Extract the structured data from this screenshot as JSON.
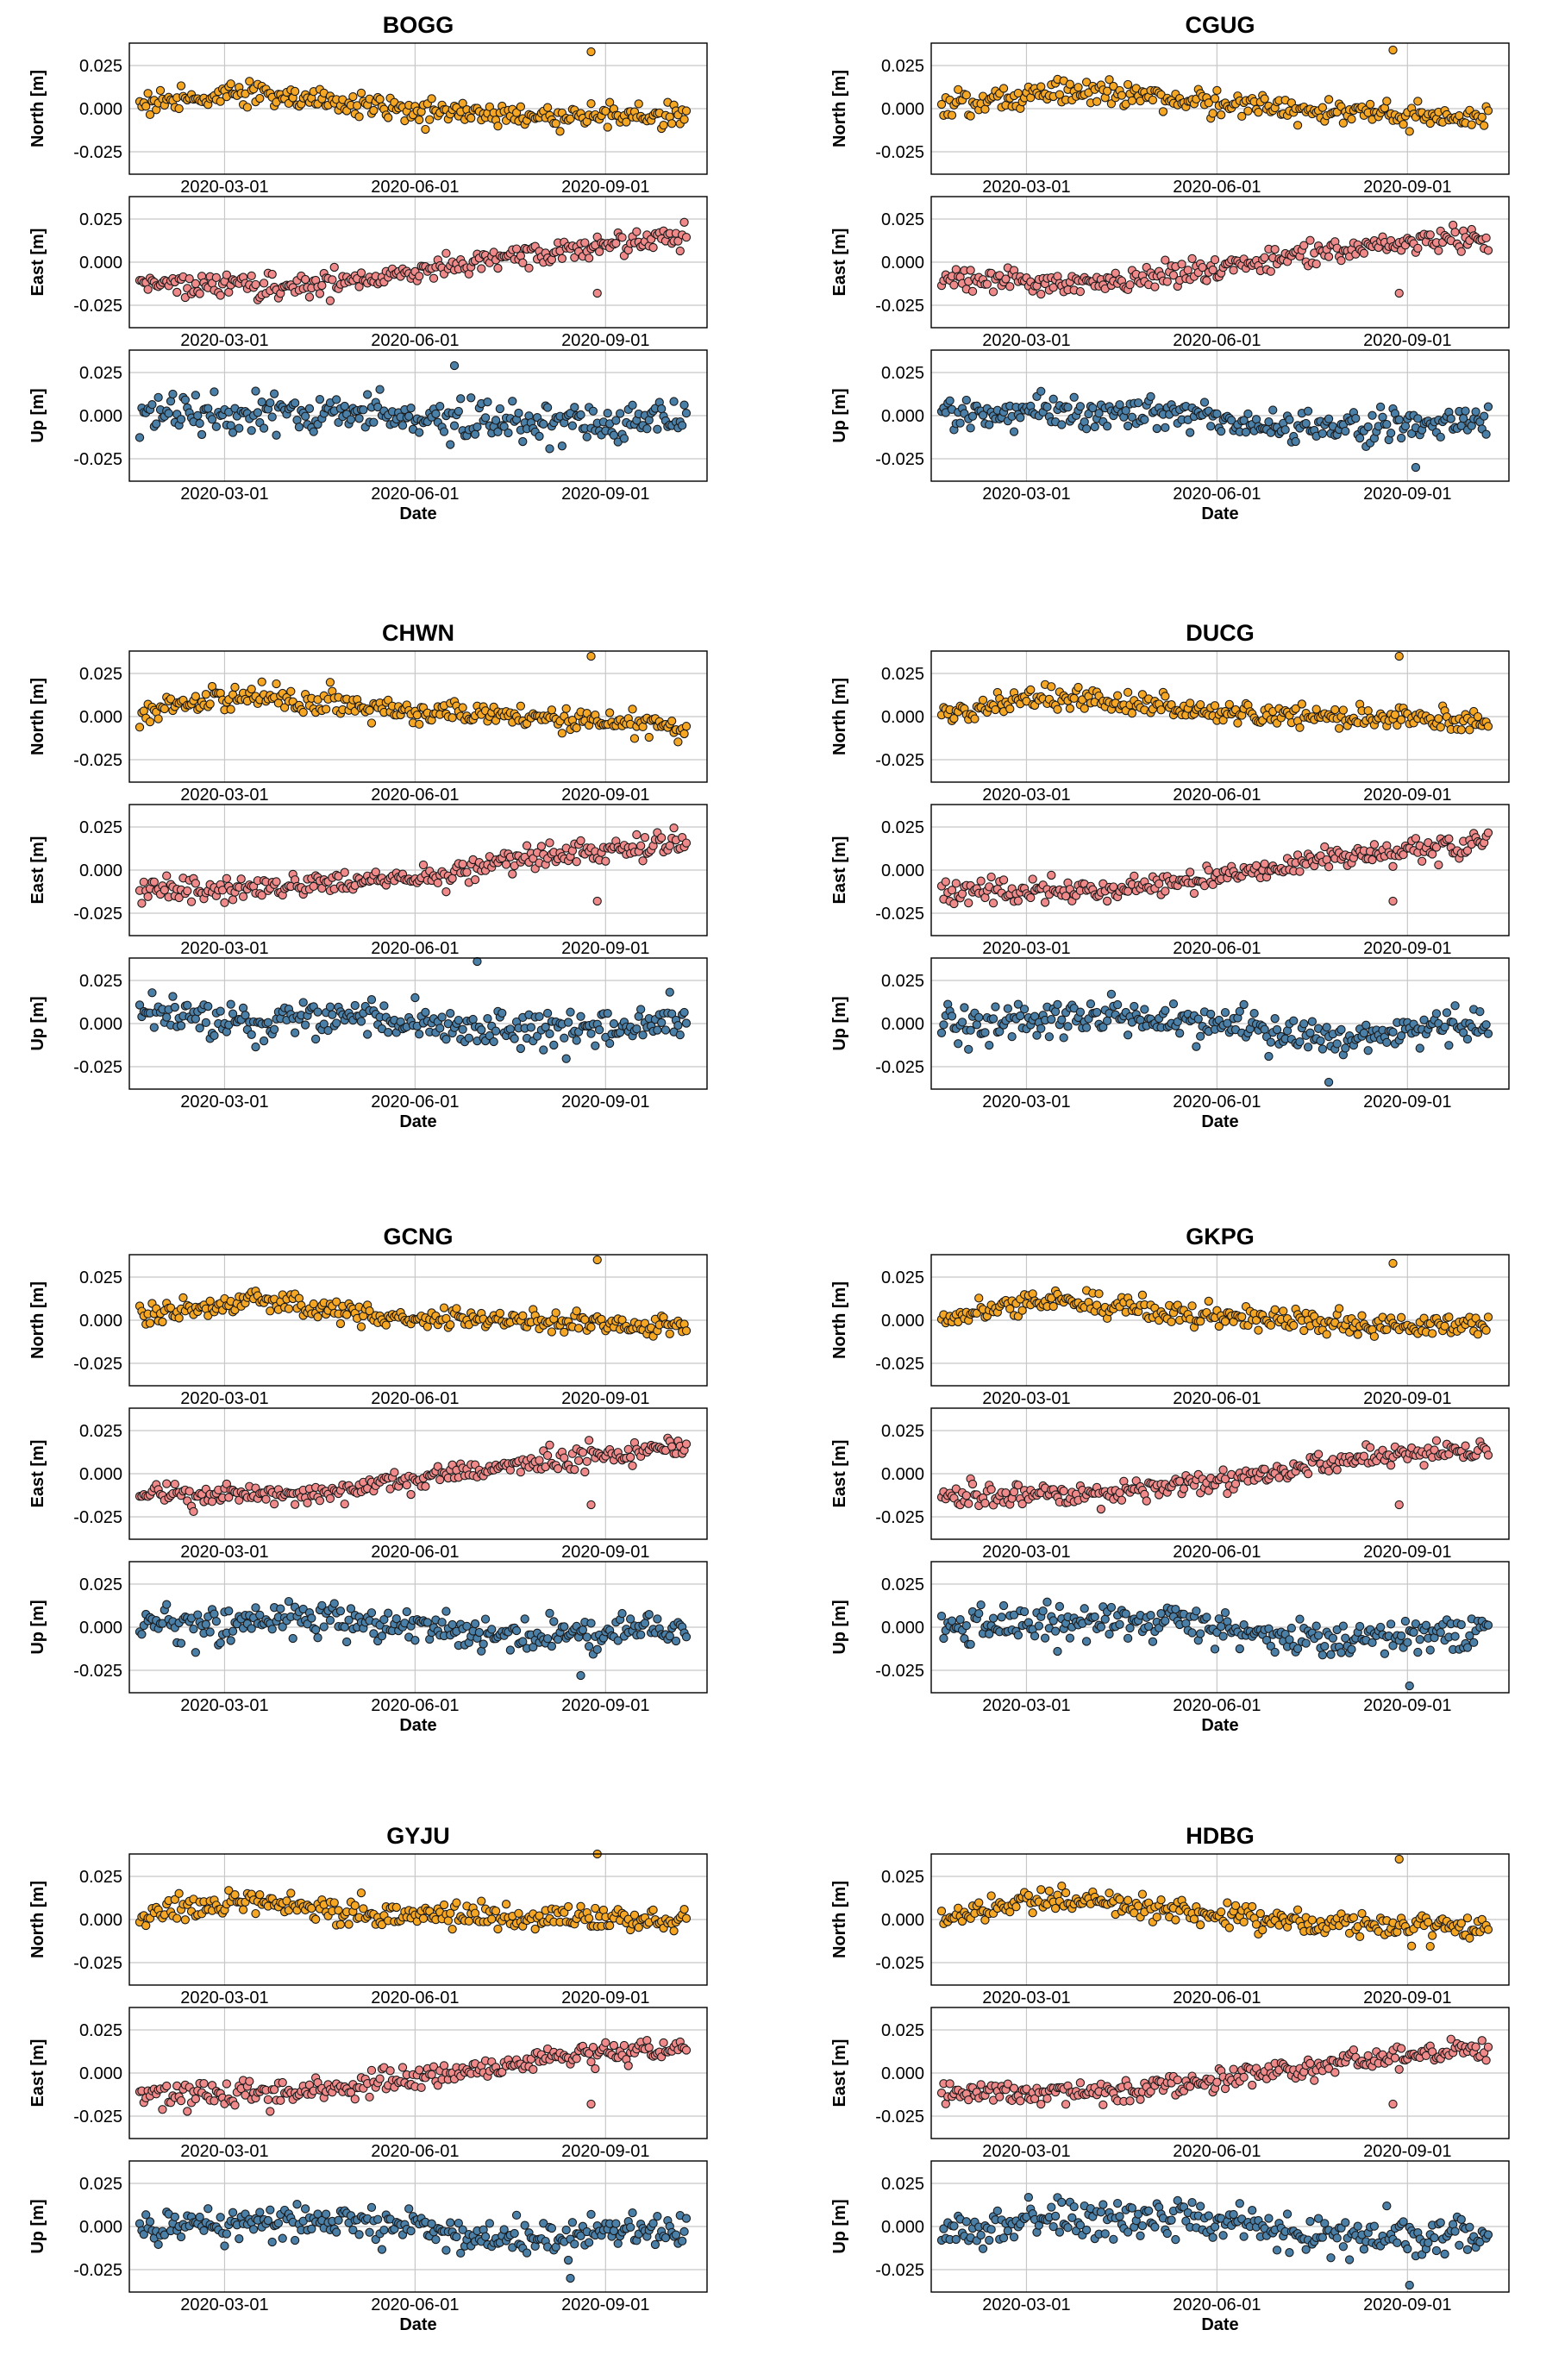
{
  "figure": {
    "panel_titles": [
      "BOGG",
      "CGUG",
      "CHWN",
      "DUCG",
      "GCNG",
      "GKPG",
      "GYJU",
      "HDBG"
    ]
  },
  "chart_data": {
    "type": "scatter",
    "shared": {
      "x_tick_labels": [
        "2020-03-01",
        "2020-06-01",
        "2020-09-01"
      ],
      "x_ticks": [
        "2020-03-01",
        "2020-06-01",
        "2020-09-01"
      ],
      "xlim": [
        "2020-01-15",
        "2020-10-20"
      ],
      "xlabel": "Date",
      "y_tick_labels": [
        "0.025",
        "0.000",
        "-0.025"
      ],
      "ylim": [
        -0.038,
        0.038
      ],
      "grid": true,
      "components": [
        {
          "ylabel": "North [m]",
          "color": "#f5a623"
        },
        {
          "ylabel": "East [m]",
          "color": "#f08a8a"
        },
        {
          "ylabel": "Up [m]",
          "color": "#4a7fa8"
        }
      ]
    },
    "stations": [
      {
        "name": "BOGG",
        "north": {
          "trend": [
            [
              0,
              0.003
            ],
            [
              0.2,
              0.01
            ],
            [
              0.45,
              0.0
            ],
            [
              0.7,
              -0.004
            ],
            [
              1,
              -0.004
            ]
          ],
          "spread": 0.006,
          "outlier": [
            "2020-08-25",
            0.033
          ]
        },
        "east": {
          "trend": [
            [
              0,
              -0.012
            ],
            [
              0.3,
              -0.014
            ],
            [
              0.5,
              -0.006
            ],
            [
              0.75,
              0.005
            ],
            [
              1,
              0.016
            ]
          ],
          "spread": 0.006,
          "outlier": [
            "2020-08-28",
            -0.018
          ]
        },
        "up": {
          "trend": [
            [
              0,
              0.0
            ],
            [
              0.4,
              0.002
            ],
            [
              0.7,
              -0.006
            ],
            [
              1,
              0.0
            ]
          ],
          "spread": 0.01,
          "outlier": [
            "2020-06-20",
            0.029
          ]
        }
      },
      {
        "name": "CGUG",
        "north": {
          "trend": [
            [
              0,
              0.002
            ],
            [
              0.2,
              0.01
            ],
            [
              0.45,
              0.005
            ],
            [
              0.7,
              -0.002
            ],
            [
              1,
              -0.004
            ]
          ],
          "spread": 0.006,
          "outlier": [
            "2020-08-25",
            0.034
          ]
        },
        "east": {
          "trend": [
            [
              0,
              -0.01
            ],
            [
              0.3,
              -0.012
            ],
            [
              0.5,
              -0.004
            ],
            [
              0.75,
              0.008
            ],
            [
              1,
              0.016
            ]
          ],
          "spread": 0.006,
          "outlier": [
            "2020-08-28",
            -0.018
          ]
        },
        "up": {
          "trend": [
            [
              0,
              0.0
            ],
            [
              0.4,
              0.002
            ],
            [
              0.7,
              -0.008
            ],
            [
              1,
              -0.002
            ]
          ],
          "spread": 0.009,
          "outlier": [
            "2020-09-05",
            -0.03
          ]
        }
      },
      {
        "name": "CHWN",
        "north": {
          "trend": [
            [
              0,
              0.002
            ],
            [
              0.2,
              0.012
            ],
            [
              0.45,
              0.004
            ],
            [
              0.7,
              0.0
            ],
            [
              1,
              -0.006
            ]
          ],
          "spread": 0.006,
          "outlier": [
            "2020-08-25",
            0.035
          ]
        },
        "east": {
          "trend": [
            [
              0,
              -0.012
            ],
            [
              0.3,
              -0.01
            ],
            [
              0.5,
              -0.004
            ],
            [
              0.75,
              0.008
            ],
            [
              1,
              0.016
            ]
          ],
          "spread": 0.006,
          "outlier": [
            "2020-08-28",
            -0.018
          ]
        },
        "up": {
          "trend": [
            [
              0,
              0.002
            ],
            [
              0.4,
              0.002
            ],
            [
              0.7,
              -0.004
            ],
            [
              1,
              0.0
            ]
          ],
          "spread": 0.01,
          "outlier": [
            "2020-07-01",
            0.036
          ]
        }
      },
      {
        "name": "DUCG",
        "north": {
          "trend": [
            [
              0,
              0.002
            ],
            [
              0.2,
              0.012
            ],
            [
              0.45,
              0.004
            ],
            [
              0.7,
              0.0
            ],
            [
              1,
              -0.004
            ]
          ],
          "spread": 0.006,
          "outlier": [
            "2020-08-28",
            0.035
          ]
        },
        "east": {
          "trend": [
            [
              0,
              -0.012
            ],
            [
              0.3,
              -0.012
            ],
            [
              0.5,
              -0.004
            ],
            [
              0.75,
              0.008
            ],
            [
              1,
              0.016
            ]
          ],
          "spread": 0.006,
          "outlier": [
            "2020-08-25",
            -0.018
          ]
        },
        "up": {
          "trend": [
            [
              0,
              0.0
            ],
            [
              0.4,
              0.004
            ],
            [
              0.7,
              -0.008
            ],
            [
              1,
              0.0
            ]
          ],
          "spread": 0.01,
          "outlier": [
            "2020-07-25",
            -0.034
          ]
        }
      },
      {
        "name": "GCNG",
        "north": {
          "trend": [
            [
              0,
              0.002
            ],
            [
              0.2,
              0.012
            ],
            [
              0.45,
              0.002
            ],
            [
              0.7,
              0.0
            ],
            [
              1,
              -0.004
            ]
          ],
          "spread": 0.006,
          "outlier": [
            "2020-08-28",
            0.035
          ]
        },
        "east": {
          "trend": [
            [
              0,
              -0.012
            ],
            [
              0.3,
              -0.012
            ],
            [
              0.5,
              -0.004
            ],
            [
              0.75,
              0.008
            ],
            [
              1,
              0.016
            ]
          ],
          "spread": 0.006,
          "outlier": [
            "2020-08-25",
            -0.018
          ]
        },
        "up": {
          "trend": [
            [
              0,
              0.002
            ],
            [
              0.4,
              0.004
            ],
            [
              0.7,
              -0.006
            ],
            [
              1,
              0.0
            ]
          ],
          "spread": 0.009,
          "outlier": [
            "2020-08-20",
            -0.028
          ]
        }
      },
      {
        "name": "GKPG",
        "north": {
          "trend": [
            [
              0,
              0.002
            ],
            [
              0.2,
              0.012
            ],
            [
              0.45,
              0.004
            ],
            [
              0.7,
              -0.002
            ],
            [
              1,
              -0.004
            ]
          ],
          "spread": 0.006,
          "outlier": [
            "2020-08-25",
            0.033
          ]
        },
        "east": {
          "trend": [
            [
              0,
              -0.012
            ],
            [
              0.3,
              -0.012
            ],
            [
              0.5,
              -0.004
            ],
            [
              0.75,
              0.008
            ],
            [
              1,
              0.014
            ]
          ],
          "spread": 0.006,
          "outlier": [
            "2020-08-28",
            -0.018
          ]
        },
        "up": {
          "trend": [
            [
              0,
              0.0
            ],
            [
              0.4,
              0.004
            ],
            [
              0.7,
              -0.008
            ],
            [
              1,
              -0.002
            ]
          ],
          "spread": 0.01,
          "outlier": [
            "2020-09-02",
            -0.034
          ]
        }
      },
      {
        "name": "GYJU",
        "north": {
          "trend": [
            [
              0,
              0.003
            ],
            [
              0.2,
              0.012
            ],
            [
              0.45,
              0.002
            ],
            [
              0.7,
              0.002
            ],
            [
              1,
              -0.002
            ]
          ],
          "spread": 0.006,
          "outlier": [
            "2020-08-28",
            0.038
          ]
        },
        "east": {
          "trend": [
            [
              0,
              -0.012
            ],
            [
              0.3,
              -0.012
            ],
            [
              0.5,
              -0.002
            ],
            [
              0.75,
              0.008
            ],
            [
              1,
              0.014
            ]
          ],
          "spread": 0.006,
          "outlier": [
            "2020-08-25",
            -0.018
          ]
        },
        "up": {
          "trend": [
            [
              0,
              0.0
            ],
            [
              0.4,
              0.004
            ],
            [
              0.7,
              -0.008
            ],
            [
              1,
              -0.002
            ]
          ],
          "spread": 0.009,
          "outlier": [
            "2020-08-15",
            -0.03
          ]
        }
      },
      {
        "name": "HDBG",
        "north": {
          "trend": [
            [
              0,
              0.002
            ],
            [
              0.2,
              0.012
            ],
            [
              0.45,
              0.004
            ],
            [
              0.7,
              -0.002
            ],
            [
              1,
              -0.004
            ]
          ],
          "spread": 0.006,
          "outlier": [
            "2020-08-28",
            0.035
          ]
        },
        "east": {
          "trend": [
            [
              0,
              -0.012
            ],
            [
              0.3,
              -0.012
            ],
            [
              0.5,
              -0.004
            ],
            [
              0.75,
              0.008
            ],
            [
              1,
              0.014
            ]
          ],
          "spread": 0.006,
          "outlier": [
            "2020-08-25",
            -0.018
          ]
        },
        "up": {
          "trend": [
            [
              0,
              -0.002
            ],
            [
              0.4,
              0.006
            ],
            [
              0.7,
              -0.006
            ],
            [
              1,
              -0.004
            ]
          ],
          "spread": 0.01,
          "outlier": [
            "2020-09-02",
            -0.034
          ]
        }
      }
    ]
  }
}
